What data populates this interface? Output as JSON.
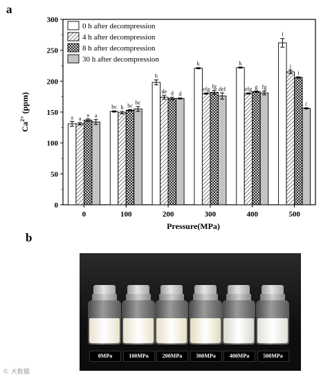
{
  "panel_a_label": "a",
  "panel_b_label": "b",
  "chart_data": {
    "type": "bar",
    "ylabel_base": "Ca",
    "ylabel_sup": "2+",
    "ylabel_unit": " (ppm)",
    "xlabel": "Pressure(MPa)",
    "ylim": [
      0,
      300
    ],
    "yticks": [
      0,
      50,
      100,
      150,
      200,
      250,
      300
    ],
    "categories": [
      "0",
      "100",
      "200",
      "300",
      "400",
      "500"
    ],
    "legend_position": "top-left",
    "grid": false,
    "series": [
      {
        "name": "0 h after decompression",
        "pattern": "white",
        "values": [
          131,
          151,
          198,
          221,
          222,
          262
        ],
        "errors": [
          4,
          1,
          4,
          1,
          1,
          7
        ],
        "labels": [
          "a",
          "bc",
          "h",
          "k",
          "k",
          "l"
        ]
      },
      {
        "name": "4 h after decompression",
        "pattern": "hatch",
        "values": [
          131,
          149,
          174,
          180,
          180,
          215
        ],
        "errors": [
          2,
          2,
          3,
          1,
          1,
          3
        ],
        "labels": [
          "a",
          "b",
          "de",
          "efg",
          "efg",
          "j"
        ]
      },
      {
        "name": "8 h after decompression",
        "pattern": "crosshatch",
        "values": [
          137,
          153,
          172,
          182,
          183,
          206
        ],
        "errors": [
          2,
          1,
          2,
          3,
          1,
          1
        ],
        "labels": [
          "a",
          "bc",
          "d",
          "fg",
          "g",
          "i"
        ]
      },
      {
        "name": "30 h after decompression",
        "pattern": "gray",
        "values": [
          134,
          155,
          172,
          176,
          181,
          156
        ],
        "errors": [
          4,
          4,
          1,
          5,
          3,
          1
        ],
        "labels": [
          "a",
          "bc",
          "d",
          "def",
          "fg",
          "c"
        ]
      }
    ]
  },
  "photo": {
    "bottles": [
      {
        "label": "0MPa",
        "liquid_color": "#e9e2cf"
      },
      {
        "label": "100MPa",
        "liquid_color": "#e8e1cc"
      },
      {
        "label": "200MPa",
        "liquid_color": "#e7dfc4"
      },
      {
        "label": "300MPa",
        "liquid_color": "#e3dbbd"
      },
      {
        "label": "400MPa",
        "liquid_color": "#d6dbd0"
      },
      {
        "label": "500MPa",
        "liquid_color": "#dde2d8"
      }
    ]
  },
  "watermark": "© 大数据"
}
